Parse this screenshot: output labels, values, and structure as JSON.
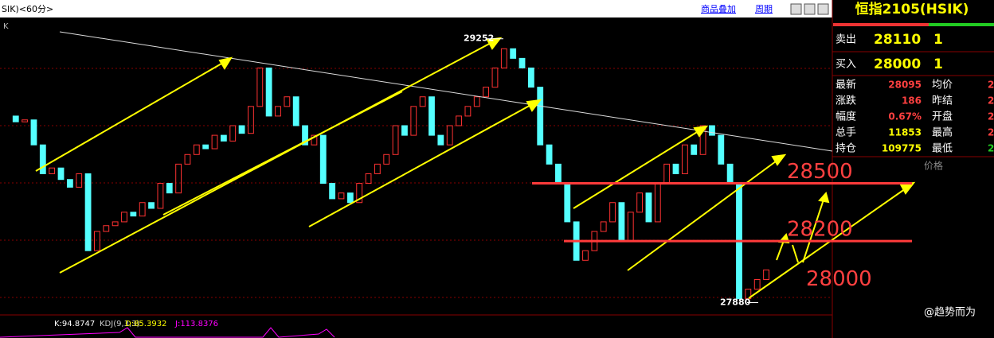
{
  "toolbar": {
    "symbol": "SIK)<60分>",
    "overlay": "商品叠加",
    "period": "周期",
    "corner": "K"
  },
  "chart_data": {
    "type": "candlestick",
    "closes": [
      28850,
      28820,
      28830,
      28700,
      28550,
      28580,
      28520,
      28480,
      28550,
      28150,
      28250,
      28280,
      28300,
      28350,
      28330,
      28400,
      28370,
      28500,
      28450,
      28600,
      28650,
      28700,
      28680,
      28750,
      28720,
      28800,
      28760,
      28900,
      29100,
      28850,
      28900,
      28950,
      28800,
      28700,
      28750,
      28500,
      28420,
      28450,
      28400,
      28500,
      28550,
      28600,
      28650,
      28800,
      28750,
      28900,
      28950,
      28750,
      28700,
      28800,
      28850,
      28900,
      28950,
      29000,
      29100,
      29200,
      29150,
      29100,
      29000,
      28700,
      28600,
      28500,
      28300,
      28100,
      28150,
      28250,
      28300,
      28400,
      28200,
      28350,
      28450,
      28300,
      28500,
      28600,
      28550,
      28700,
      28650,
      28800,
      28750,
      28600,
      28500,
      27900,
      27950,
      28000,
      28050
    ],
    "ylim": [
      27820,
      29350
    ],
    "high_label": 29252,
    "low_label": 27880,
    "levels": [
      28500,
      28200,
      28000
    ]
  },
  "indicator": {
    "name": "KDJ(9,3,3)",
    "k": "K:94.8747",
    "d": "D:85.3932",
    "j": "J:113.8376"
  },
  "quote": {
    "title": "恒指2105(HSIK)",
    "sell": {
      "label": "卖出",
      "price": 28110,
      "qty": 1
    },
    "buy": {
      "label": "买入",
      "price": 28000,
      "qty": 1
    },
    "rows": [
      [
        "最新",
        28095,
        "均价",
        2
      ],
      [
        "涨跌",
        186,
        "昨结",
        2
      ],
      [
        "幅度",
        "0.67%",
        "开盘",
        2
      ],
      [
        "总手",
        11853,
        "最高",
        2
      ],
      [
        "持仓",
        109775,
        "最低",
        2
      ]
    ],
    "column_header": "价格"
  },
  "watermark": "@趋势而为"
}
